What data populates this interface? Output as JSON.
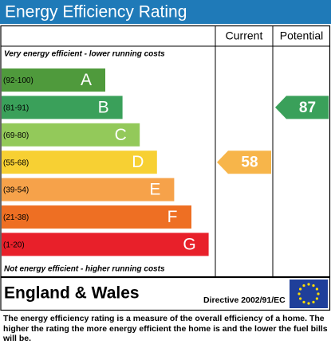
{
  "header": {
    "title": "Energy Efficiency Rating"
  },
  "columns": [
    "Current",
    "Potential"
  ],
  "top_note": "Very energy efficient - lower running costs",
  "bottom_note": "Not energy efficient - higher running costs",
  "bands": [
    {
      "range": "(92-100)",
      "letter": "A",
      "color": "#4f9a3c"
    },
    {
      "range": "(81-91)",
      "letter": "B",
      "color": "#3aa05a"
    },
    {
      "range": "(69-80)",
      "letter": "C",
      "color": "#93c95a"
    },
    {
      "range": "(55-68)",
      "letter": "D",
      "color": "#f7d033"
    },
    {
      "range": "(39-54)",
      "letter": "E",
      "color": "#f6a24a"
    },
    {
      "range": "(21-38)",
      "letter": "F",
      "color": "#ee6f23"
    },
    {
      "range": "(1-20)",
      "letter": "G",
      "color": "#e8202a"
    }
  ],
  "ratings": {
    "current": {
      "value": 58,
      "band": 3,
      "color": "#f7b54a"
    },
    "potential": {
      "value": 87,
      "band": 1,
      "color": "#3aa05a"
    }
  },
  "footer": {
    "region": "England & Wales",
    "directive": "Directive 2002/91/EC",
    "description": "The energy efficiency rating is a measure of the overall efficiency of a home. The higher the rating the more energy efficient the home is and the lower the fuel bills will be."
  }
}
